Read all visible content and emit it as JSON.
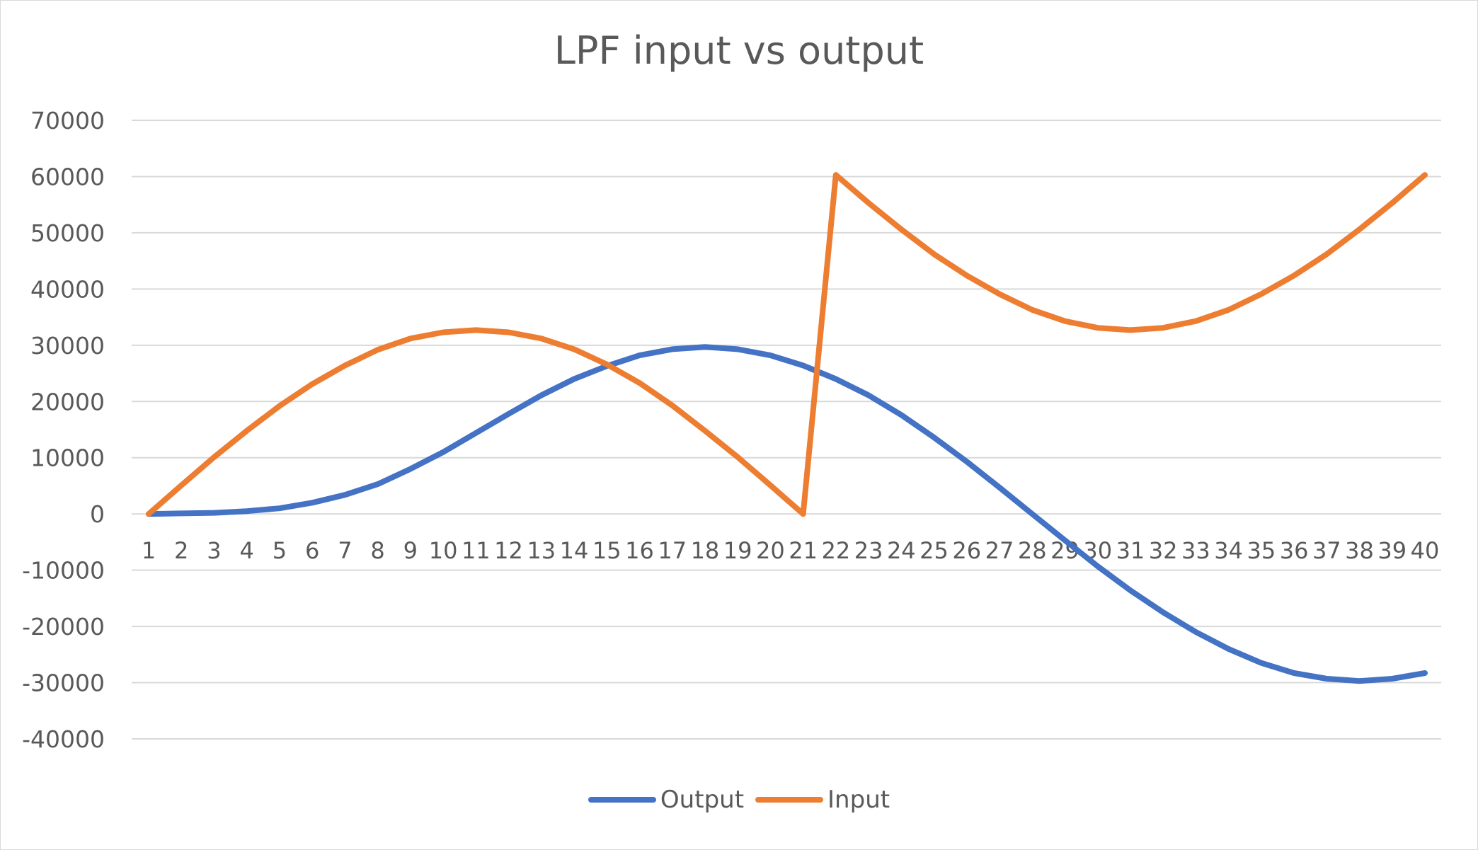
{
  "chart_data": {
    "type": "line",
    "title": "LPF input vs output",
    "xlabel": "",
    "ylabel": "",
    "categories": [
      "1",
      "2",
      "3",
      "4",
      "5",
      "6",
      "7",
      "8",
      "9",
      "10",
      "11",
      "12",
      "13",
      "14",
      "15",
      "16",
      "17",
      "18",
      "19",
      "20",
      "21",
      "22",
      "23",
      "24",
      "25",
      "26",
      "27",
      "28",
      "29",
      "30",
      "31",
      "32",
      "33",
      "34",
      "35",
      "36",
      "37",
      "38",
      "39",
      "40"
    ],
    "ylim": [
      -40000,
      70000
    ],
    "yticks": [
      70000,
      60000,
      50000,
      40000,
      30000,
      20000,
      10000,
      0,
      -10000,
      -20000,
      -30000,
      -40000
    ],
    "grid": true,
    "legend_position": "bottom",
    "series": [
      {
        "name": "Output",
        "color": "#4472C4",
        "values": [
          0,
          100,
          200,
          500,
          1000,
          2000,
          3400,
          5300,
          8000,
          11000,
          14400,
          17800,
          21100,
          24000,
          26300,
          28200,
          29300,
          29700,
          29300,
          28200,
          26400,
          24000,
          21100,
          17600,
          13600,
          9300,
          4700,
          0,
          -4700,
          -9300,
          -13600,
          -17500,
          -21000,
          -24000,
          -26500,
          -28300,
          -29300,
          -29700,
          -29300,
          -28300
        ]
      },
      {
        "name": "Input",
        "color": "#ED7D31",
        "values": [
          0,
          5100,
          10100,
          14800,
          19200,
          23100,
          26400,
          29200,
          31200,
          32300,
          32700,
          32300,
          31200,
          29300,
          26600,
          23300,
          19300,
          14800,
          10100,
          5100,
          0,
          60300,
          55300,
          50600,
          46200,
          42400,
          39100,
          36300,
          34300,
          33100,
          32700,
          33100,
          34300,
          36300,
          39100,
          42400,
          46200,
          50600,
          55300,
          60300
        ]
      }
    ]
  }
}
